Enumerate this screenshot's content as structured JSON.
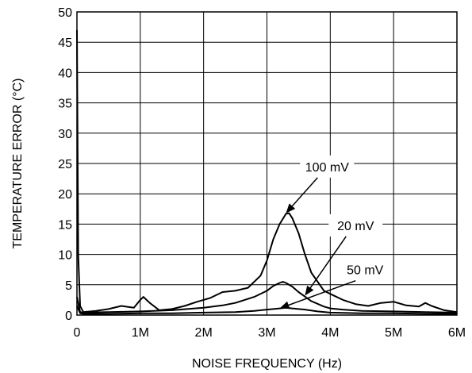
{
  "chart_data": {
    "type": "line",
    "title": "",
    "xlabel": "NOISE FREQUENCY (Hz)",
    "ylabel": "TEMPERATURE ERROR (°C)",
    "xlim": [
      0,
      6000000
    ],
    "ylim": [
      0,
      50
    ],
    "grid": true,
    "x_ticks": [
      {
        "value": 0,
        "label": "0"
      },
      {
        "value": 1000000,
        "label": "1M"
      },
      {
        "value": 2000000,
        "label": "2M"
      },
      {
        "value": 3000000,
        "label": "3M"
      },
      {
        "value": 4000000,
        "label": "4M"
      },
      {
        "value": 5000000,
        "label": "5M"
      },
      {
        "value": 6000000,
        "label": "6M"
      }
    ],
    "y_ticks": [
      {
        "value": 0,
        "label": "0"
      },
      {
        "value": 5,
        "label": "5"
      },
      {
        "value": 10,
        "label": "10"
      },
      {
        "value": 15,
        "label": "15"
      },
      {
        "value": 20,
        "label": "20"
      },
      {
        "value": 25,
        "label": "25"
      },
      {
        "value": 30,
        "label": "30"
      },
      {
        "value": 35,
        "label": "35"
      },
      {
        "value": 40,
        "label": "40"
      },
      {
        "value": 45,
        "label": "45"
      },
      {
        "value": 50,
        "label": "50"
      }
    ],
    "series": [
      {
        "name": "100 mV",
        "x": [
          0,
          20000,
          50000,
          100000,
          300000,
          500000,
          700000,
          900000,
          1000000,
          1050000,
          1150000,
          1300000,
          1500000,
          1700000,
          1900000,
          2100000,
          2300000,
          2500000,
          2700000,
          2900000,
          3000000,
          3100000,
          3200000,
          3300000,
          3350000,
          3400000,
          3500000,
          3600000,
          3700000,
          3800000,
          3900000,
          4000000,
          4200000,
          4400000,
          4600000,
          4800000,
          5000000,
          5200000,
          5400000,
          5500000,
          5600000,
          5800000,
          6000000
        ],
        "y": [
          47,
          10,
          1.5,
          0.5,
          0.7,
          1.0,
          1.5,
          1.2,
          2.5,
          3.0,
          2.0,
          0.8,
          1.0,
          1.5,
          2.2,
          2.8,
          3.8,
          4.0,
          4.5,
          6.5,
          9.0,
          12.5,
          15.0,
          16.7,
          16.8,
          16.0,
          13.5,
          10.0,
          7.0,
          5.5,
          4.0,
          3.5,
          2.5,
          1.8,
          1.5,
          2.0,
          2.2,
          1.6,
          1.4,
          2.0,
          1.5,
          0.8,
          0.5
        ]
      },
      {
        "name": "20 mV",
        "x": [
          0,
          50000,
          100000,
          500000,
          1000000,
          1500000,
          2000000,
          2300000,
          2500000,
          2800000,
          3000000,
          3100000,
          3200000,
          3250000,
          3300000,
          3400000,
          3500000,
          3700000,
          3900000,
          4000000,
          4200000,
          4500000,
          5000000,
          5500000,
          6000000
        ],
        "y": [
          3.0,
          0.5,
          0.4,
          0.5,
          0.6,
          0.8,
          1.2,
          1.6,
          2.0,
          3.0,
          4.0,
          4.8,
          5.3,
          5.5,
          5.3,
          4.7,
          3.8,
          2.3,
          1.4,
          1.1,
          0.9,
          0.7,
          0.6,
          0.5,
          0.4
        ]
      },
      {
        "name": "50 mV",
        "x": [
          0,
          50000,
          100000,
          500000,
          1000000,
          1500000,
          2000000,
          2500000,
          2800000,
          3000000,
          3200000,
          3300000,
          3400000,
          3600000,
          3800000,
          4000000,
          4500000,
          5000000,
          5500000,
          6000000
        ],
        "y": [
          1.5,
          0.3,
          0.2,
          0.2,
          0.3,
          0.3,
          0.4,
          0.5,
          0.7,
          0.9,
          1.1,
          1.2,
          1.1,
          0.9,
          0.6,
          0.4,
          0.3,
          0.3,
          0.2,
          0.2
        ]
      }
    ],
    "annotations": [
      {
        "text": "100 mV",
        "series": "100 mV",
        "point_x": 3300000,
        "point_y": 16.8,
        "label_x": 3950000,
        "label_y": 24.5
      },
      {
        "text": "20 mV",
        "series": "20 mV",
        "point_x": 3600000,
        "point_y": 3.2,
        "label_x": 4400000,
        "label_y": 14.8
      },
      {
        "text": "50 mV",
        "series": "50 mV",
        "point_x": 3200000,
        "point_y": 1.1,
        "label_x": 4550000,
        "label_y": 7.5
      }
    ]
  }
}
